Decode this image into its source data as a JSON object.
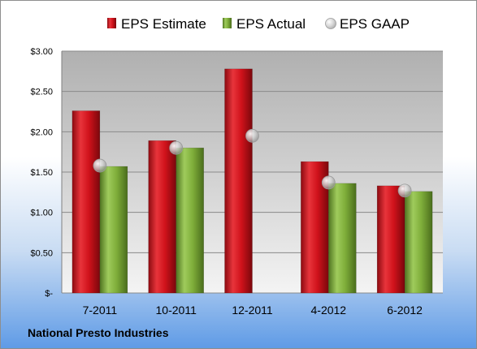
{
  "company": "National Presto Industries",
  "chart_data": {
    "type": "bar",
    "categories": [
      "7-2011",
      "10-2011",
      "12-2011",
      "4-2012",
      "6-2012"
    ],
    "series": [
      {
        "name": "EPS Estimate",
        "kind": "bar",
        "color": "#d0121b",
        "values": [
          2.26,
          1.89,
          2.78,
          1.63,
          1.33
        ]
      },
      {
        "name": "EPS Actual",
        "kind": "bar",
        "color": "#7fae3a",
        "values": [
          1.57,
          1.8,
          null,
          1.36,
          1.26
        ]
      },
      {
        "name": "EPS GAAP",
        "kind": "scatter",
        "color": "#c8c8c8",
        "values": [
          1.58,
          1.8,
          1.95,
          1.37,
          1.27
        ]
      }
    ],
    "yticks": [
      "$-",
      "$0.50",
      "$1.00",
      "$1.50",
      "$2.00",
      "$2.50",
      "$3.00"
    ],
    "ylim": [
      0,
      3
    ],
    "grid": true,
    "legend_position": "top"
  }
}
